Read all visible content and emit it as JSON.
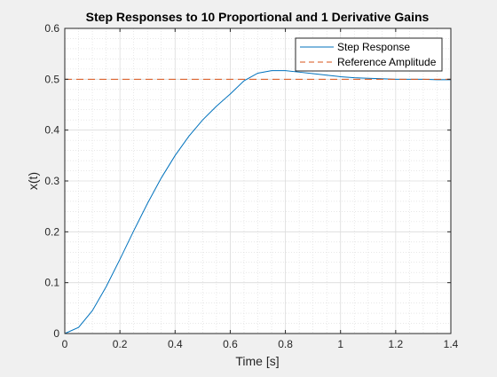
{
  "chart_data": {
    "type": "line",
    "title": "Step Responses to 10 Proportional and 1 Derivative Gains",
    "xlabel": "Time [s]",
    "ylabel": "x(t)",
    "xlim": [
      0,
      1.4
    ],
    "ylim": [
      0,
      0.6
    ],
    "xticks": [
      0,
      0.2,
      0.4,
      0.6,
      0.8,
      1,
      1.2,
      1.4
    ],
    "xtick_labels": [
      "0",
      "0.2",
      "0.4",
      "0.6",
      "0.8",
      "1",
      "1.2",
      "1.4"
    ],
    "yticks": [
      0,
      0.1,
      0.2,
      0.3,
      0.4,
      0.5,
      0.6
    ],
    "ytick_labels": [
      "0",
      "0.1",
      "0.2",
      "0.3",
      "0.4",
      "0.5",
      "0.6"
    ],
    "grid": true,
    "minor_grid": true,
    "legend_position": "top-right",
    "series": [
      {
        "name": "Step Response",
        "color": "#0072bd",
        "line_style": "solid",
        "x": [
          0,
          0.05,
          0.1,
          0.15,
          0.2,
          0.25,
          0.3,
          0.35,
          0.4,
          0.45,
          0.5,
          0.55,
          0.6,
          0.65,
          0.7,
          0.75,
          0.8,
          0.85,
          0.9,
          0.95,
          1.0,
          1.05,
          1.1,
          1.15,
          1.2,
          1.25,
          1.3,
          1.35,
          1.4
        ],
        "values": [
          0,
          0.012,
          0.045,
          0.092,
          0.146,
          0.202,
          0.256,
          0.306,
          0.35,
          0.388,
          0.42,
          0.447,
          0.471,
          0.497,
          0.512,
          0.517,
          0.517,
          0.514,
          0.511,
          0.508,
          0.505,
          0.503,
          0.502,
          0.501,
          0.5,
          0.5,
          0.5,
          0.499,
          0.499
        ]
      },
      {
        "name": "Reference Amplitude",
        "color": "#d95319",
        "line_style": "dashed",
        "x": [
          0,
          1.4
        ],
        "values": [
          0.5,
          0.5
        ]
      }
    ]
  }
}
